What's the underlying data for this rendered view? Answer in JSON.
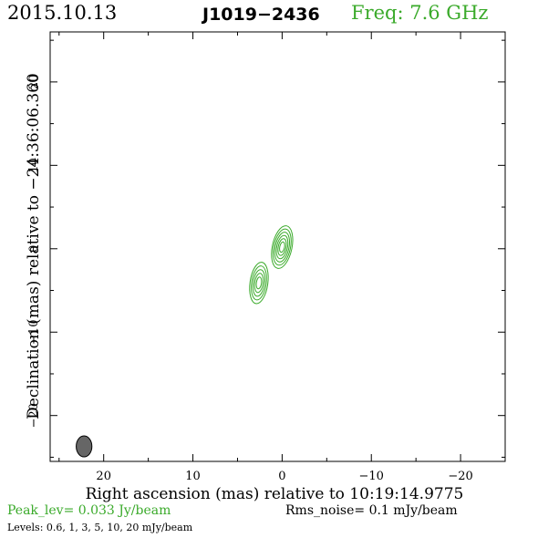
{
  "header": {
    "date": "2015.10.13",
    "source": "J1019−2436",
    "frequency": "Freq: 7.6 GHz"
  },
  "footer": {
    "peak": "Peak_lev=  0.033 Jy/beam",
    "rms": "Rms_noise=  0.1 mJy/beam",
    "levels": "Levels: 0.6,   1,   3,   5,   10,   20 mJy/beam"
  },
  "colors": {
    "contour": "#3aaa2a",
    "beam": "#666666",
    "axis": "#000000"
  },
  "chart_data": {
    "type": "contour",
    "xlabel": "Right ascension (mas) relative to 10:19:14.9775",
    "ylabel": "Declination (mas) relative to −24:36:06.360",
    "xlim": [
      26,
      -25
    ],
    "ylim": [
      -25.5,
      26
    ],
    "xticks": [
      {
        "value": 20,
        "label": "20"
      },
      {
        "value": 10,
        "label": "10"
      },
      {
        "value": 0,
        "label": "0"
      },
      {
        "value": -10,
        "label": "−10"
      },
      {
        "value": -20,
        "label": "−20"
      }
    ],
    "yticks": [
      {
        "value": 20,
        "label": "20"
      },
      {
        "value": 10,
        "label": "10"
      },
      {
        "value": 0,
        "label": "0"
      },
      {
        "value": -10,
        "label": "−10"
      },
      {
        "value": -20,
        "label": "−20"
      }
    ],
    "contour_levels_mJy": [
      0.6,
      1,
      3,
      5,
      10,
      20
    ],
    "peak_Jy_per_beam": 0.033,
    "rms_mJy_per_beam": 0.1,
    "components": [
      {
        "x": 0.0,
        "y": 0.2,
        "semi_major": 2.6,
        "semi_minor": 1.1,
        "pa_deg": 12,
        "levels_drawn": 6
      },
      {
        "x": 2.6,
        "y": -4.1,
        "semi_major": 2.5,
        "semi_minor": 1.0,
        "pa_deg": 8,
        "levels_drawn": 5
      }
    ],
    "beam": {
      "x": 22.2,
      "y": -23.7,
      "major": 2.4,
      "minor": 1.1,
      "pa_deg": 0
    }
  }
}
